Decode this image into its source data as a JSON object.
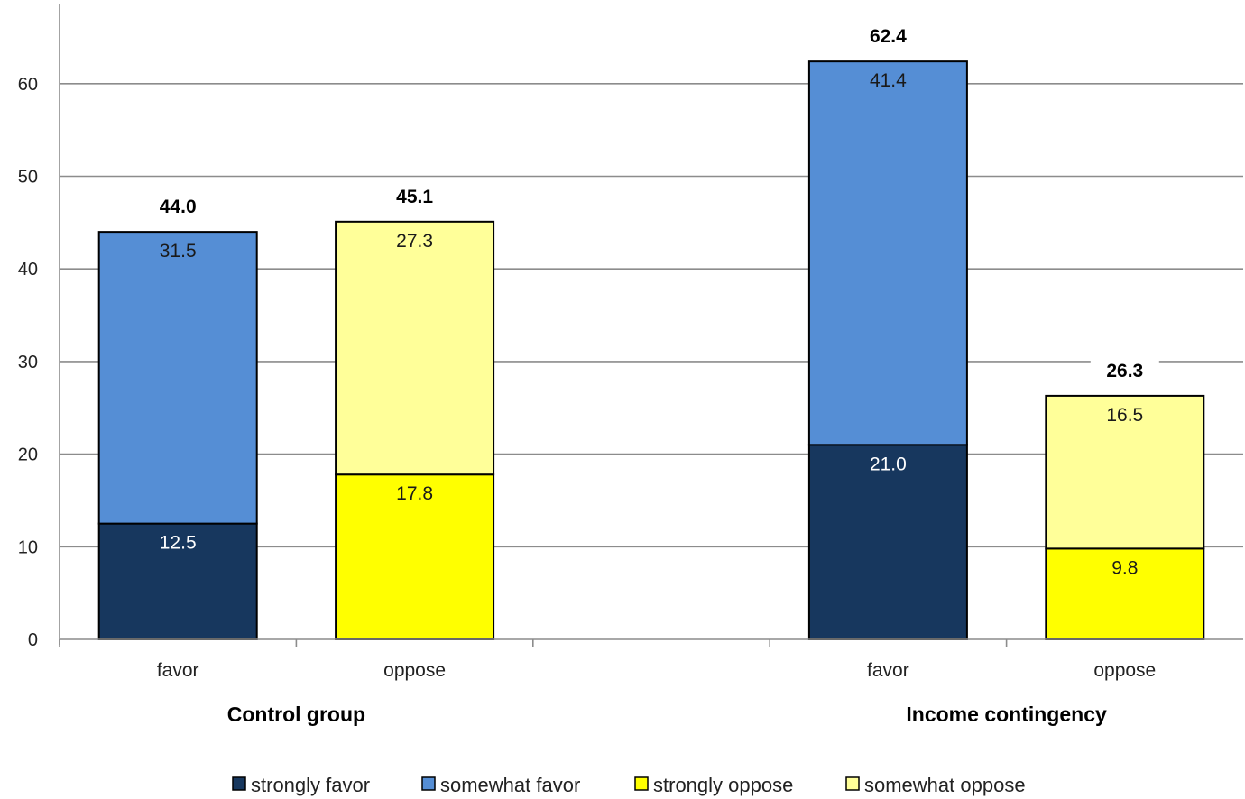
{
  "chart_data": {
    "type": "bar",
    "stacked": true,
    "title": "",
    "xlabel": "",
    "ylabel": "",
    "ylim": [
      0,
      70
    ],
    "yticks": [
      0,
      10,
      20,
      30,
      40,
      50,
      60
    ],
    "grid": true,
    "legend_position": "bottom",
    "groups": [
      "Control group",
      "Income contingency"
    ],
    "bars": [
      {
        "group": "Control group",
        "category": "favor",
        "total": "44.0",
        "segments": [
          {
            "series": "strongly favor",
            "value": 12.5,
            "label": "12.5"
          },
          {
            "series": "somewhat favor",
            "value": 31.5,
            "label": "31.5"
          }
        ]
      },
      {
        "group": "Control group",
        "category": "oppose",
        "total": "45.1",
        "segments": [
          {
            "series": "strongly oppose",
            "value": 17.8,
            "label": "17.8"
          },
          {
            "series": "somewhat oppose",
            "value": 27.3,
            "label": "27.3"
          }
        ]
      },
      {
        "group": "Income contingency",
        "category": "favor",
        "total": "62.4",
        "segments": [
          {
            "series": "strongly favor",
            "value": 21.0,
            "label": "21.0"
          },
          {
            "series": "somewhat favor",
            "value": 41.4,
            "label": "41.4"
          }
        ]
      },
      {
        "group": "Income contingency",
        "category": "oppose",
        "total": "26.3",
        "segments": [
          {
            "series": "strongly oppose",
            "value": 9.8,
            "label": "9.8"
          },
          {
            "series": "somewhat oppose",
            "value": 16.5,
            "label": "16.5"
          }
        ]
      }
    ],
    "series": [
      {
        "name": "strongly favor",
        "color": "#17375e",
        "label_color": "#ffffff"
      },
      {
        "name": "somewhat favor",
        "color": "#558ed5",
        "label_color": "#1a1a1a"
      },
      {
        "name": "strongly oppose",
        "color": "#ffff00",
        "label_color": "#1a1a1a"
      },
      {
        "name": "somewhat oppose",
        "color": "#ffff99",
        "label_color": "#1a1a1a"
      }
    ]
  }
}
